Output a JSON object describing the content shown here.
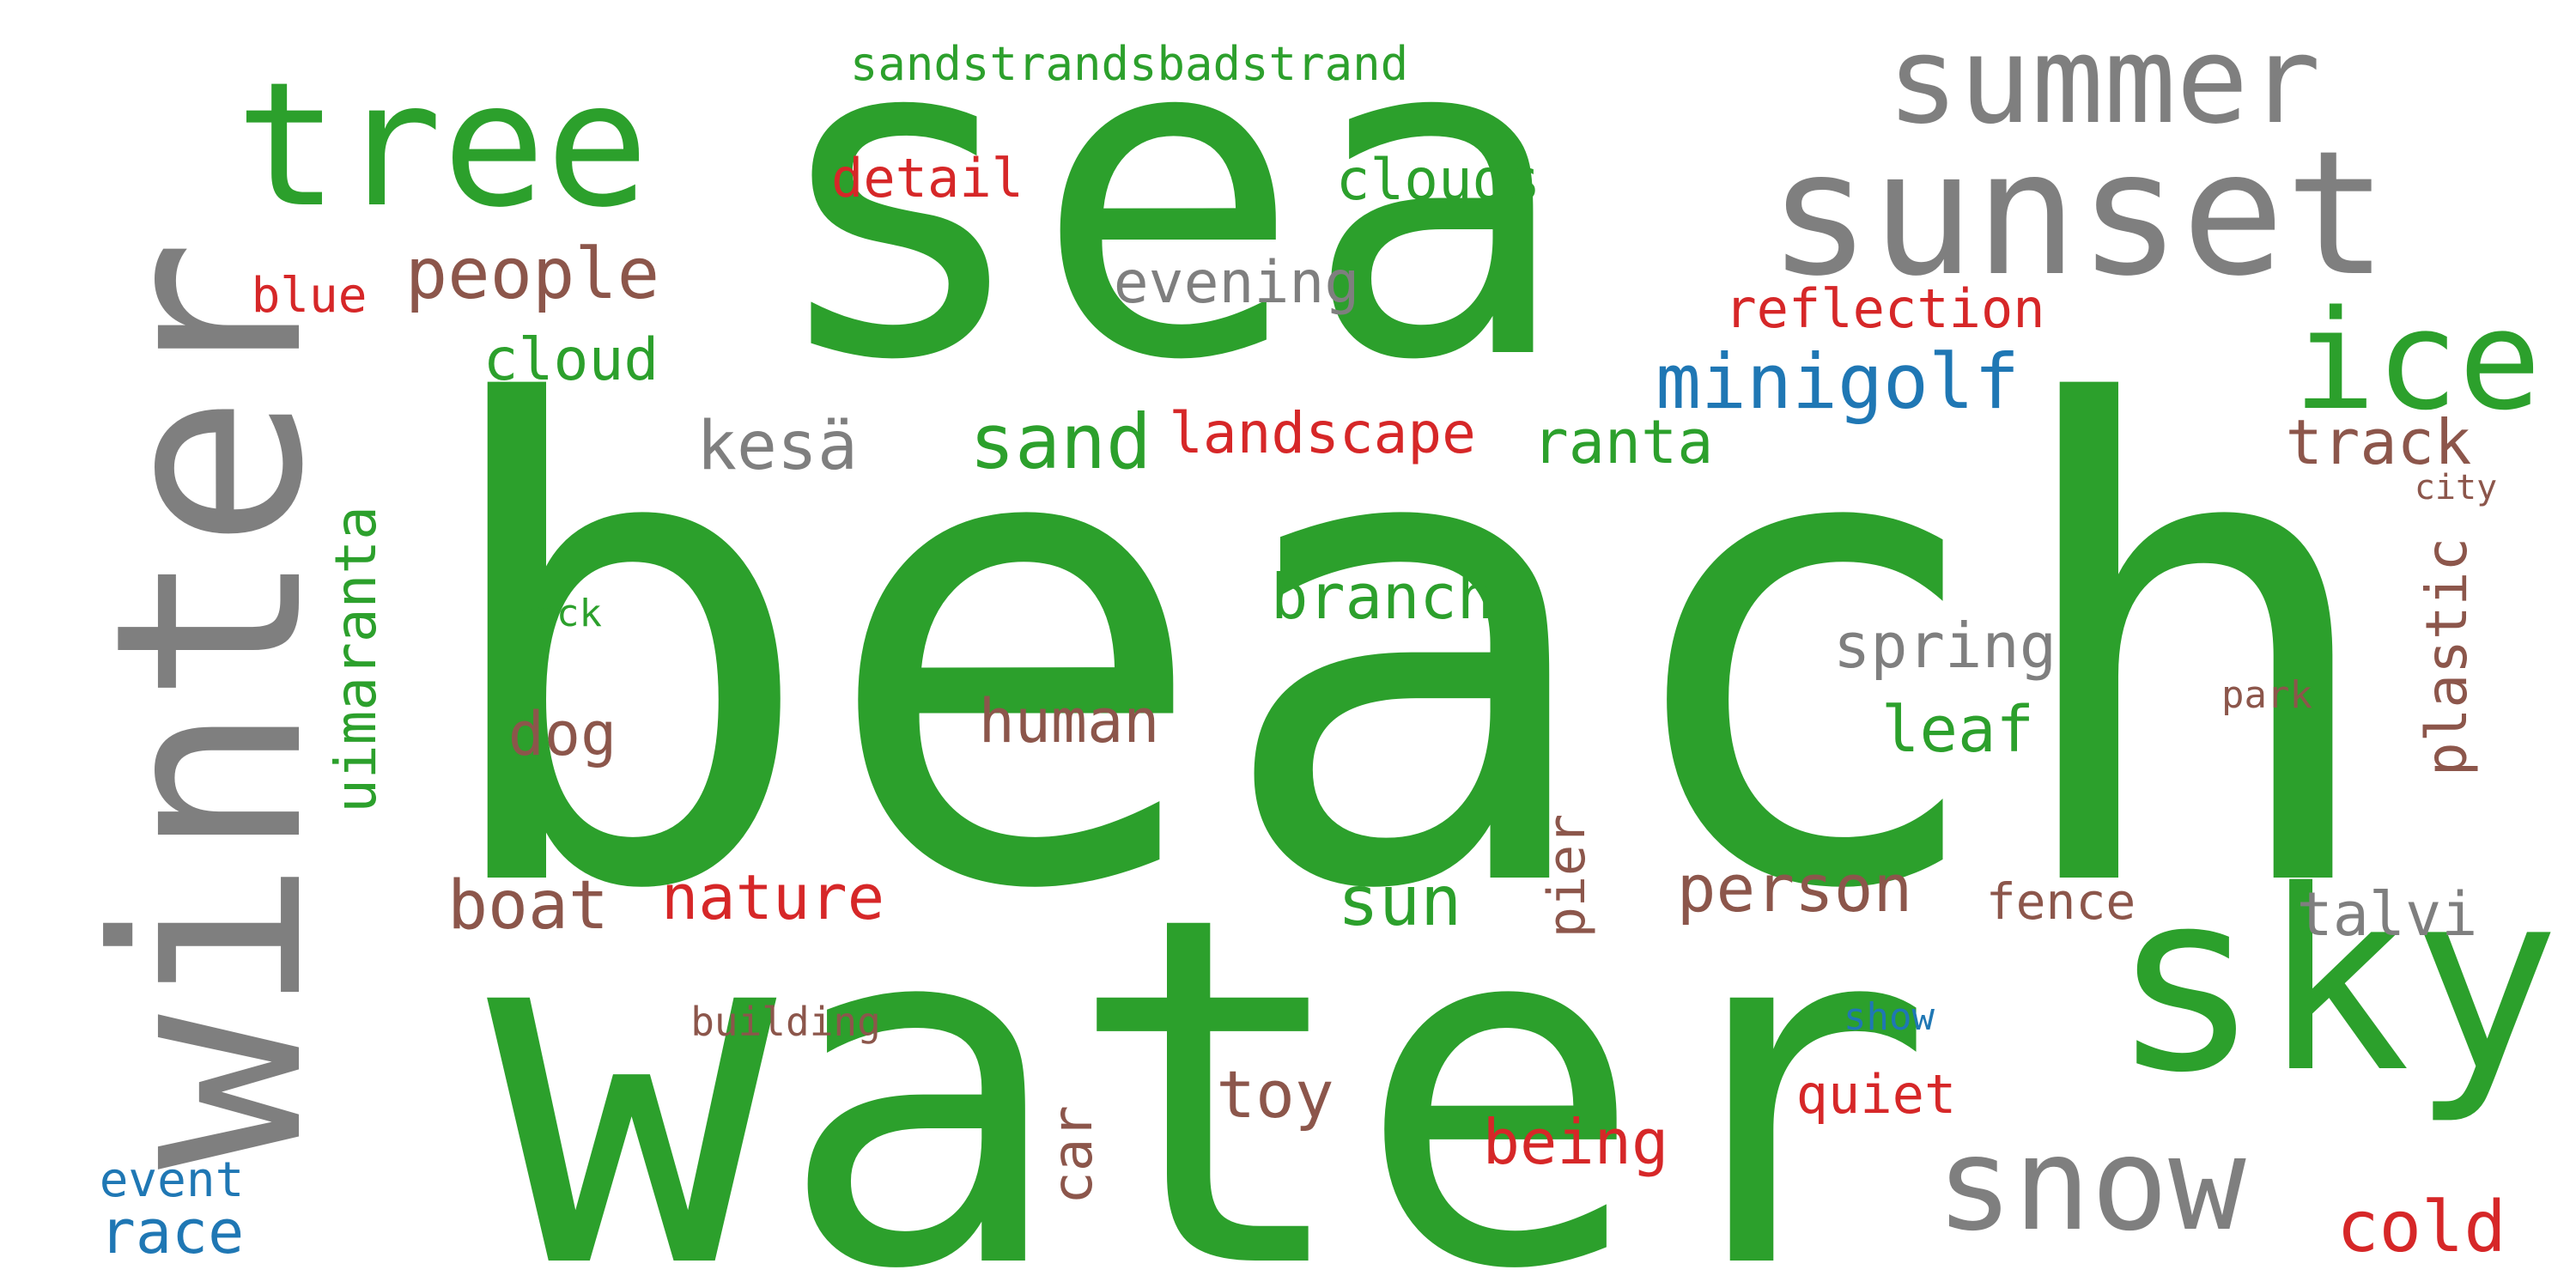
{
  "palette": {
    "green": "#2ca02c",
    "gray": "#7f7f7f",
    "brown": "#8c564b",
    "red": "#d62728",
    "blue": "#1f77b4"
  },
  "words": [
    {
      "text": "beach",
      "color": "green",
      "vertical": false
    },
    {
      "text": "water",
      "color": "green",
      "vertical": false
    },
    {
      "text": "sea",
      "color": "green",
      "vertical": false
    },
    {
      "text": "winter",
      "color": "gray",
      "vertical": true
    },
    {
      "text": "sunset",
      "color": "gray",
      "vertical": false
    },
    {
      "text": "sky",
      "color": "green",
      "vertical": false
    },
    {
      "text": "tree",
      "color": "green",
      "vertical": false
    },
    {
      "text": "summer",
      "color": "gray",
      "vertical": false
    },
    {
      "text": "ice",
      "color": "green",
      "vertical": false
    },
    {
      "text": "snow",
      "color": "gray",
      "vertical": false
    },
    {
      "text": "minigolf",
      "color": "blue",
      "vertical": false
    },
    {
      "text": "people",
      "color": "brown",
      "vertical": false
    },
    {
      "text": "sand",
      "color": "green",
      "vertical": false
    },
    {
      "text": "kesä",
      "color": "gray",
      "vertical": false
    },
    {
      "text": "ranta",
      "color": "green",
      "vertical": false
    },
    {
      "text": "landscape",
      "color": "red",
      "vertical": false
    },
    {
      "text": "sandstrandsbadstrand",
      "color": "green",
      "vertical": false
    },
    {
      "text": "detail",
      "color": "red",
      "vertical": false
    },
    {
      "text": "clouds",
      "color": "green",
      "vertical": false
    },
    {
      "text": "evening",
      "color": "gray",
      "vertical": false
    },
    {
      "text": "blue",
      "color": "red",
      "vertical": false
    },
    {
      "text": "cloud",
      "color": "green",
      "vertical": false
    },
    {
      "text": "reflection",
      "color": "red",
      "vertical": false
    },
    {
      "text": "track",
      "color": "brown",
      "vertical": false
    },
    {
      "text": "city",
      "color": "brown",
      "vertical": false
    },
    {
      "text": "plastic",
      "color": "brown",
      "vertical": true
    },
    {
      "text": "park",
      "color": "brown",
      "vertical": false
    },
    {
      "text": "uimaranta",
      "color": "green",
      "vertical": true
    },
    {
      "text": "rock",
      "color": "green",
      "vertical": false
    },
    {
      "text": "branch",
      "color": "green",
      "vertical": false
    },
    {
      "text": "spring",
      "color": "gray",
      "vertical": false
    },
    {
      "text": "human",
      "color": "brown",
      "vertical": false
    },
    {
      "text": "leaf",
      "color": "green",
      "vertical": false
    },
    {
      "text": "dog",
      "color": "brown",
      "vertical": false
    },
    {
      "text": "boat",
      "color": "brown",
      "vertical": false
    },
    {
      "text": "nature",
      "color": "red",
      "vertical": false
    },
    {
      "text": "sun",
      "color": "green",
      "vertical": false
    },
    {
      "text": "pier",
      "color": "brown",
      "vertical": true
    },
    {
      "text": "person",
      "color": "brown",
      "vertical": false
    },
    {
      "text": "fence",
      "color": "brown",
      "vertical": false
    },
    {
      "text": "talvi",
      "color": "gray",
      "vertical": false
    },
    {
      "text": "building",
      "color": "brown",
      "vertical": false
    },
    {
      "text": "show",
      "color": "blue",
      "vertical": false
    },
    {
      "text": "toy",
      "color": "brown",
      "vertical": false
    },
    {
      "text": "car",
      "color": "brown",
      "vertical": true
    },
    {
      "text": "being",
      "color": "red",
      "vertical": false
    },
    {
      "text": "quiet",
      "color": "red",
      "vertical": false
    },
    {
      "text": "event",
      "color": "blue",
      "vertical": false
    },
    {
      "text": "race",
      "color": "blue",
      "vertical": false
    },
    {
      "text": "cold",
      "color": "red",
      "vertical": false
    }
  ]
}
